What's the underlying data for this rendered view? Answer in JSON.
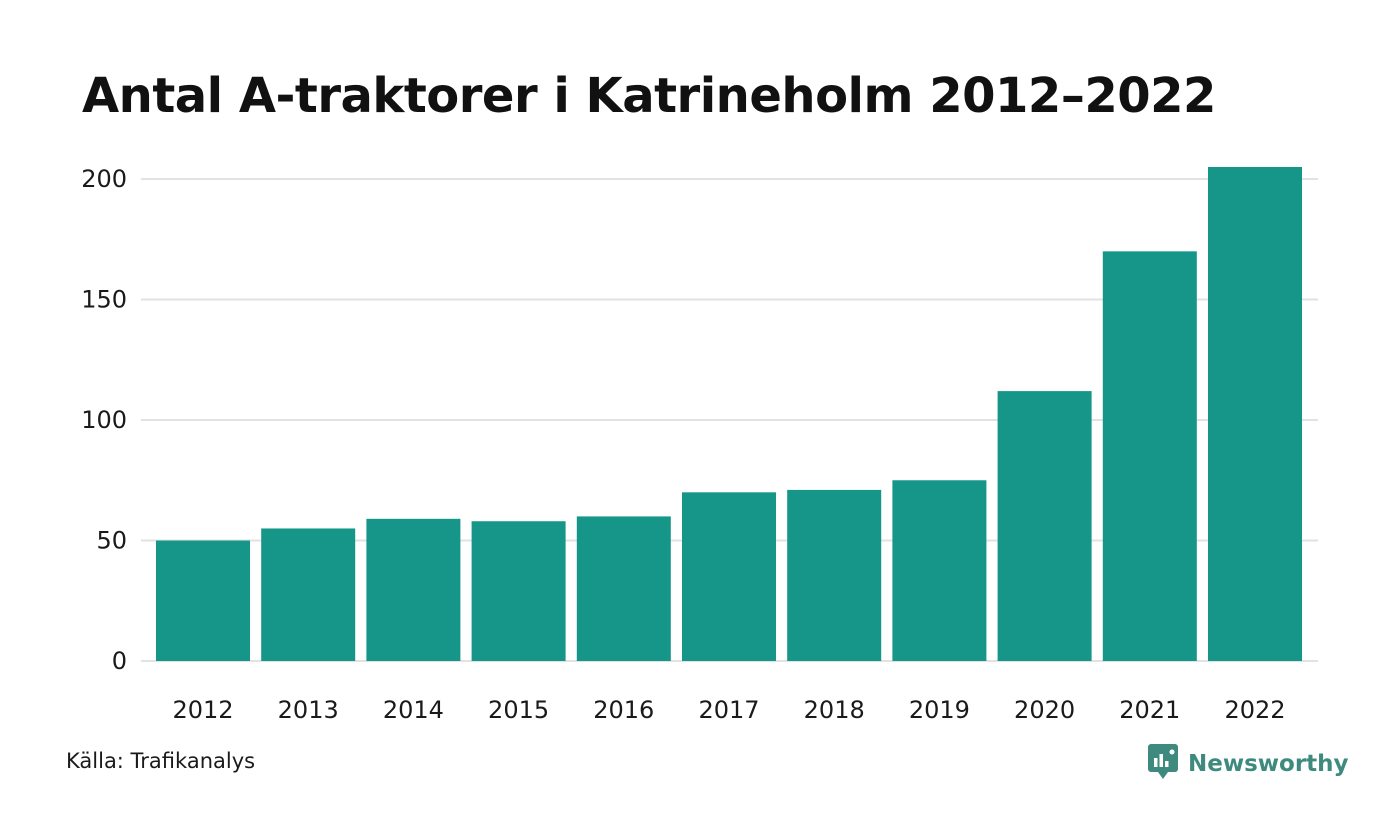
{
  "colors": {
    "bar": "#159688",
    "grid": "#e2e2e2",
    "brand": "#3e8a7e"
  },
  "source": "Källa: Trafikanalys",
  "brand": {
    "name": "Newsworthy",
    "icon": "newsworthy-logo-icon"
  },
  "chart_data": {
    "type": "bar",
    "title": "Antal A-traktorer i Katrineholm 2012–2022",
    "xlabel": "",
    "ylabel": "",
    "categories": [
      "2012",
      "2013",
      "2014",
      "2015",
      "2016",
      "2017",
      "2018",
      "2019",
      "2020",
      "2021",
      "2022"
    ],
    "values": [
      50,
      55,
      59,
      58,
      60,
      70,
      71,
      75,
      112,
      170,
      205
    ],
    "ylim": [
      0,
      205
    ],
    "yticks": [
      0,
      50,
      100,
      150,
      200
    ],
    "grid": true
  }
}
